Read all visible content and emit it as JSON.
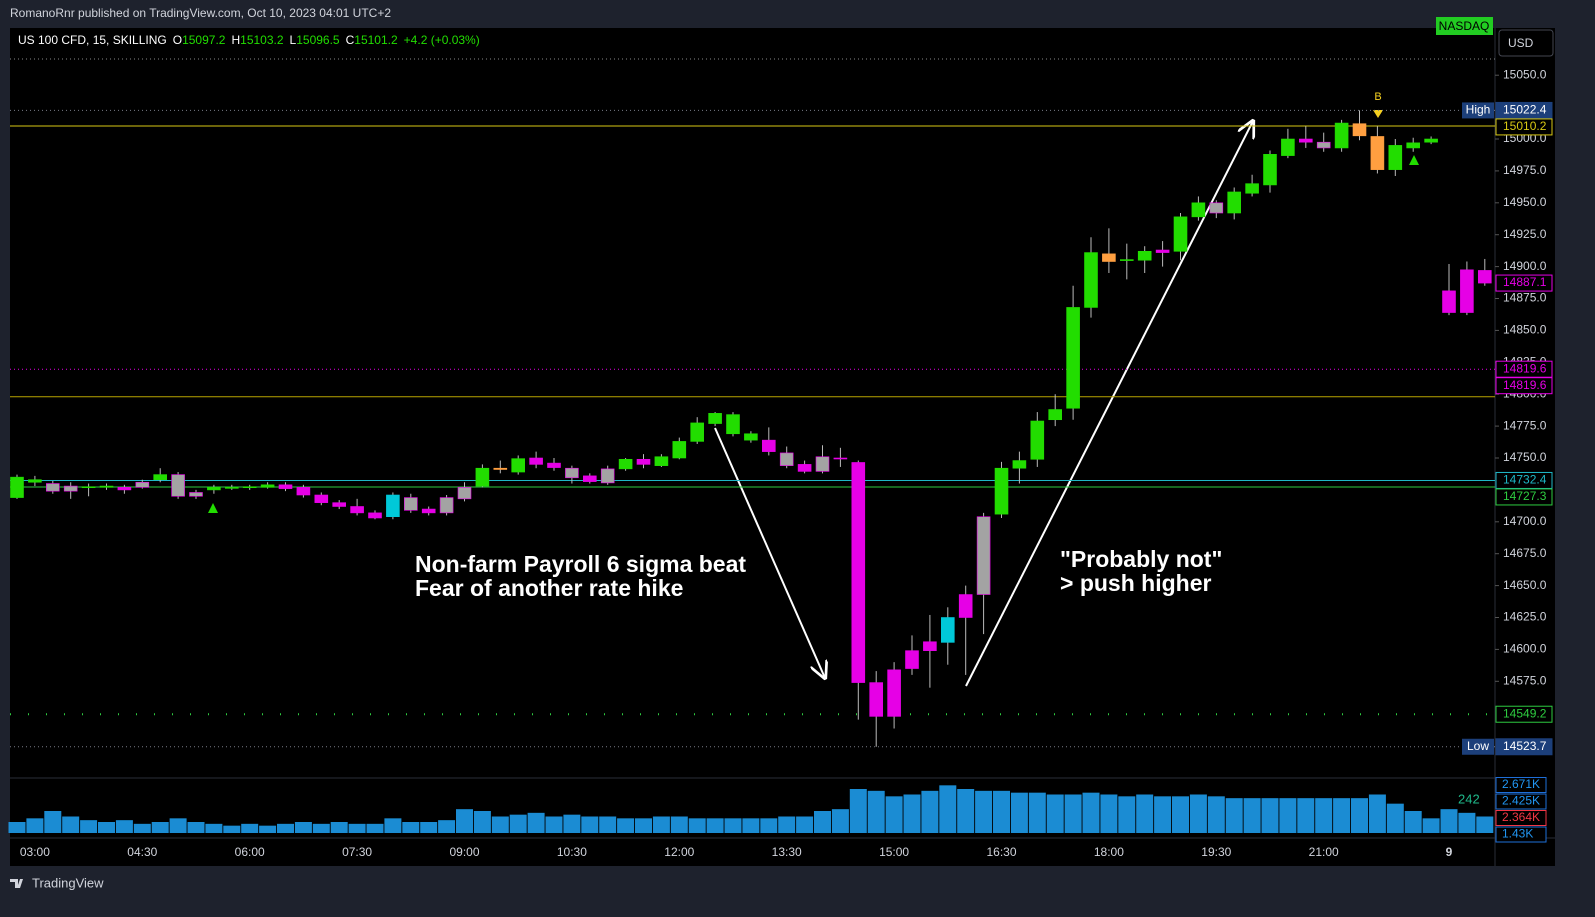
{
  "header": {
    "publisher": "RomanoRnr published on TradingView.com, Oct 10, 2023 04:01 UTC+2",
    "footer": "TradingView"
  },
  "chart_data": {
    "type": "candlestick",
    "symbol": "US 100 CFD, 15, SKILLING",
    "legend_values": [
      {
        "name": "O",
        "value": 15097.2
      },
      {
        "name": "H",
        "value": 15103.2
      },
      {
        "name": "L",
        "value": 15096.5
      },
      {
        "name": "C",
        "value": 15101.2
      }
    ],
    "change": "+4.2 (+0.03%)",
    "exchange": "NASDAQ",
    "currency": "USD",
    "categories": [
      null,
      "03:00",
      null,
      null,
      null,
      null,
      null,
      "04:30",
      null,
      null,
      null,
      null,
      null,
      "06:00",
      null,
      null,
      null,
      null,
      null,
      "07:30",
      null,
      null,
      null,
      null,
      null,
      "09:00",
      null,
      null,
      null,
      null,
      null,
      "10:30",
      null,
      null,
      null,
      null,
      null,
      "12:00",
      null,
      null,
      null,
      null,
      null,
      "13:30",
      null,
      null,
      null,
      null,
      null,
      "15:00",
      null,
      null,
      null,
      null,
      null,
      "16:30",
      null,
      null,
      null,
      null,
      null,
      "18:00",
      null,
      null,
      null,
      null,
      null,
      "19:30",
      null,
      null,
      null,
      null,
      null,
      "21:00",
      null,
      null,
      null,
      null,
      null,
      null,
      "9",
      null,
      null
    ],
    "open": [
      14719,
      14733,
      14730,
      14728,
      14727,
      14727,
      14727,
      14727,
      14733,
      14737,
      14723,
      14725,
      14727,
      14727,
      14727,
      14729,
      14727,
      14721,
      14715,
      14712,
      14707,
      14704,
      14719,
      14710,
      14707,
      14718,
      14728,
      14742,
      14739,
      14750,
      14746,
      14742,
      14736,
      14730.5,
      14741.5,
      14749,
      14744,
      14750,
      14763,
      14777,
      14769,
      14769,
      14764,
      14754,
      14745,
      14739.5,
      14750,
      14746.5,
      14574,
      14547.5,
      14585,
      14599,
      14605.5,
      14625,
      14643,
      14706,
      14742,
      14749,
      14780,
      14789,
      14868,
      14910,
      14905,
      14905,
      14913,
      14912,
      14939,
      14950,
      14942,
      14957.5,
      14964,
      14987,
      15000,
      14997.5,
      14993,
      15012,
      15002,
      14976,
      14993,
      14997.5,
      14881,
      14864,
      14897
    ],
    "high": [
      14737,
      14736,
      14732,
      14731,
      14730,
      14730,
      14729,
      14733,
      14742,
      14739,
      14725,
      14729,
      14729,
      14729,
      14731,
      14731,
      14729,
      14723,
      14717,
      14718,
      14709,
      14723,
      14722,
      14712,
      14721,
      14731,
      14745,
      14748,
      14752,
      14755,
      14750,
      14744,
      14738,
      14744,
      14750,
      14753,
      14753,
      14766,
      14782,
      14786,
      14786,
      14771,
      14774,
      14759,
      14748,
      14760,
      14758,
      14748,
      14583,
      14590,
      14611,
      14627,
      14633,
      14650,
      14707,
      14747,
      14755,
      14786,
      14800,
      14885,
      14923,
      14930,
      14918,
      14916,
      14920,
      14942,
      14955,
      14952,
      14962,
      14972,
      14991,
      15008,
      15010,
      15005,
      15015,
      15022.4,
      15010,
      15000,
      15001,
      15002,
      14902,
      14904,
      14906
    ],
    "low": [
      14718,
      14728,
      14722,
      14718,
      14720,
      14725,
      14722,
      14726,
      14731,
      14718,
      14718,
      14722,
      14725,
      14725,
      14726,
      14724,
      14719,
      14713,
      14710,
      14705,
      14702,
      14702,
      14707,
      14705,
      14705,
      14716,
      14727,
      14738,
      14737,
      14742,
      14740,
      14730,
      14730,
      14729,
      14740,
      14742,
      14743,
      14749,
      14761,
      14775,
      14767,
      14762,
      14752,
      14742,
      14738,
      14738,
      14743,
      14545,
      14523.7,
      14538,
      14580,
      14570,
      14588,
      14580,
      14612,
      14703,
      14730,
      14743,
      14775,
      14780,
      14860,
      14895,
      14890,
      14895,
      14900,
      14905,
      14936,
      14938,
      14937,
      14955,
      14958,
      14985,
      14993,
      14990,
      14990,
      14999,
      14973,
      14971,
      14990,
      14996,
      14862,
      14862,
      14885
    ],
    "close": [
      14735,
      14731,
      14724,
      14724,
      14727.5,
      14728,
      14725,
      14731,
      14737,
      14720,
      14720,
      14727,
      14727,
      14727.5,
      14729,
      14726,
      14721,
      14715,
      14712,
      14707,
      14703,
      14721,
      14709,
      14707,
      14719,
      14727,
      14742,
      14741,
      14749.5,
      14745,
      14742.5,
      14734.5,
      14731.5,
      14741.5,
      14749,
      14745,
      14751,
      14763,
      14777.5,
      14785,
      14784,
      14764,
      14755,
      14744,
      14739.5,
      14751,
      14750,
      14574,
      14547.5,
      14584,
      14599,
      14606,
      14625,
      14643,
      14704,
      14742,
      14748,
      14779,
      14788,
      14868,
      14911,
      14904,
      14905.5,
      14912,
      14911,
      14939,
      14950,
      14942,
      14958.5,
      14965,
      14988,
      15000,
      14997.5,
      14993,
      15012.5,
      15002.5,
      14976,
      14995,
      14997,
      15000,
      14864,
      14897.5,
      14887.1
    ],
    "colors": [
      "#22dd00",
      "#22dd00",
      "#a3a3a3",
      "#a3a3a3",
      "#22dd00",
      "#22dd00",
      "#e600e6",
      "#a3a3a3",
      "#22dd00",
      "#a3a3a3",
      "#a3a3a3",
      "#22dd00",
      "#22dd00",
      "#22dd00",
      "#22dd00",
      "#e600e6",
      "#e600e6",
      "#e600e6",
      "#e600e6",
      "#e600e6",
      "#e600e6",
      "#00c8d8",
      "#a3a3a3",
      "#e600e6",
      "#a3a3a3",
      "#a3a3a3",
      "#22dd00",
      "#ff9f40",
      "#22dd00",
      "#e600e6",
      "#e600e6",
      "#a3a3a3",
      "#e600e6",
      "#a3a3a3",
      "#22dd00",
      "#e600e6",
      "#22dd00",
      "#22dd00",
      "#22dd00",
      "#22dd00",
      "#22dd00",
      "#22dd00",
      "#e600e6",
      "#a3a3a3",
      "#e600e6",
      "#a3a3a3",
      "#e600e6",
      "#e600e6",
      "#e600e6",
      "#e600e6",
      "#e600e6",
      "#e600e6",
      "#00c8d8",
      "#e600e6",
      "#a3a3a3",
      "#22dd00",
      "#22dd00",
      "#22dd00",
      "#22dd00",
      "#22dd00",
      "#22dd00",
      "#ff9f40",
      "#22dd00",
      "#22dd00",
      "#e600e6",
      "#22dd00",
      "#22dd00",
      "#a3a3a3",
      "#22dd00",
      "#22dd00",
      "#22dd00",
      "#22dd00",
      "#e600e6",
      "#a3a3a3",
      "#22dd00",
      "#ff9f40",
      "#ff9f40",
      "#22dd00",
      "#22dd00",
      "#22dd00",
      "#e600e6",
      "#e600e6",
      "#e600e6"
    ],
    "ylim": [
      14500,
      15087
    ],
    "yticks": [
      {
        "value": 15050,
        "label": "15050.0"
      },
      {
        "value": 15000,
        "label": "15000.0"
      },
      {
        "value": 14975,
        "label": "14975.0"
      },
      {
        "value": 14950,
        "label": "14950.0"
      },
      {
        "value": 14925,
        "label": "14925.0"
      },
      {
        "value": 14900,
        "label": "14900.0"
      },
      {
        "value": 14875,
        "label": "14875.0"
      },
      {
        "value": 14850,
        "label": "14850.0"
      },
      {
        "value": 14825,
        "label": "14825.0"
      },
      {
        "value": 14800,
        "label": "14800.0"
      },
      {
        "value": 14775,
        "label": "14775.0"
      },
      {
        "value": 14750,
        "label": "14750.0"
      },
      {
        "value": 14700,
        "label": "14700.0"
      },
      {
        "value": 14675,
        "label": "14675.0"
      },
      {
        "value": 14650,
        "label": "14650.0"
      },
      {
        "value": 14625,
        "label": "14625.0"
      },
      {
        "value": 14600,
        "label": "14600.0"
      },
      {
        "value": 14575,
        "label": "14575.0"
      }
    ],
    "levels": [
      {
        "value": 15022.4,
        "name": "High",
        "color": "#787b86",
        "style": "dotted",
        "box": "#1c3f7a",
        "text": "#ffffff",
        "show_line": true,
        "show_label": true
      },
      {
        "value": 15010.2,
        "color": "#d8c813",
        "style": "solid",
        "box": "#000000",
        "text": "#d8c813",
        "show_line": true,
        "show_label": true
      },
      {
        "value": 14887.1,
        "color": "#e600e6",
        "style": "solid",
        "box": "#000000",
        "text": "#e600e6",
        "show_line": false,
        "show_label": true
      },
      {
        "value": 14819.6,
        "color": "#e600e6",
        "style": "dotted",
        "box": "#000000",
        "text": "#e600e6",
        "show_line": true,
        "show_label": true
      },
      {
        "value": 14819.6,
        "color": "#e600e6",
        "style": "dotted",
        "box": "#000000",
        "text": "#e600e6",
        "show_line": false,
        "show_label": true
      },
      {
        "value": 14798,
        "color": "#b8a400",
        "style": "solid",
        "show_line": true,
        "show_label": false
      },
      {
        "value": 14732.4,
        "color": "#1fb8c7",
        "style": "solid",
        "box": "#000000",
        "text": "#1fb8c7",
        "show_line": true,
        "show_label": true
      },
      {
        "value": 14727.3,
        "color": "#2ecc40",
        "style": "solid",
        "box": "#000000",
        "text": "#2ecc40",
        "show_line": true,
        "show_label": true
      },
      {
        "value": 14549.2,
        "color": "#2ecc40",
        "style": "dots",
        "box": "#000000",
        "text": "#2ecc40",
        "show_line": true,
        "show_label": true
      },
      {
        "value": 14523.7,
        "name": "Low",
        "color": "#787b86",
        "style": "dotted",
        "box": "#1c3f7a",
        "text": "#ffffff",
        "show_line": true,
        "show_label": true
      }
    ],
    "marker": "B",
    "annotations": [
      "Non-farm Payroll 6 sigma beat",
      "Fear of another rate hike",
      "\"Probably not\"",
      "> push higher"
    ],
    "volume": {
      "values": [
        0.6,
        0.8,
        1.2,
        0.9,
        0.7,
        0.6,
        0.7,
        0.5,
        0.6,
        0.8,
        0.6,
        0.5,
        0.4,
        0.5,
        0.4,
        0.5,
        0.6,
        0.5,
        0.6,
        0.5,
        0.5,
        0.8,
        0.6,
        0.6,
        0.7,
        1.3,
        1.2,
        0.9,
        1.0,
        1.1,
        0.9,
        1.0,
        0.9,
        0.9,
        0.8,
        0.8,
        0.9,
        0.9,
        0.8,
        0.8,
        0.8,
        0.8,
        0.8,
        0.9,
        0.9,
        1.2,
        1.3,
        2.4,
        2.3,
        2.0,
        2.1,
        2.3,
        2.6,
        2.4,
        2.3,
        2.3,
        2.2,
        2.2,
        2.1,
        2.1,
        2.2,
        2.1,
        2.0,
        2.1,
        2.0,
        2.0,
        2.1,
        2.0,
        1.9,
        1.9,
        1.9,
        1.9,
        1.9,
        1.9,
        1.9,
        1.9,
        2.1,
        1.6,
        1.2,
        0.8,
        1.3,
        1.1,
        0.9
      ],
      "color": "#1e9bea",
      "ylim": [
        0,
        3
      ],
      "labels": [
        {
          "value": 2.671,
          "label": "2.671K",
          "box": "#1e6fd9"
        },
        {
          "value": 2.425,
          "label": "2.425K",
          "box": "#1e6fd9"
        },
        {
          "value": 2.364,
          "label": "2.364K",
          "box": "#f23645"
        },
        {
          "value": 1.43,
          "label": "1.43K",
          "box": "#1e6fd9"
        }
      ],
      "indicator_text": "242"
    }
  }
}
